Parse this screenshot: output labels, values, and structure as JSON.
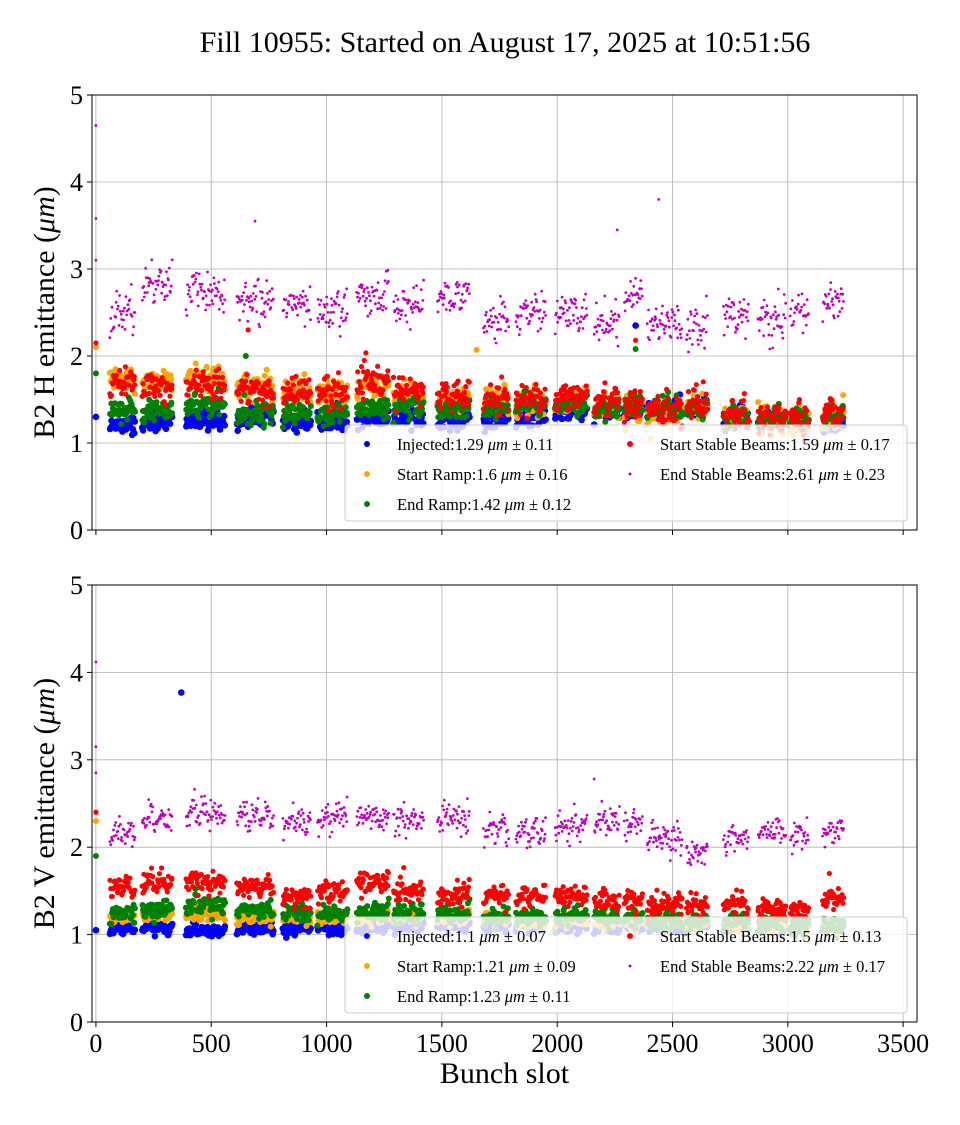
{
  "title": "Fill 10955: Started on August 17, 2025 at 10:51:56",
  "chart_data": [
    {
      "type": "scatter",
      "ylabel_prefix": "B2 H emittance (",
      "ylabel_unit": "μm",
      "ylabel_suffix": ")",
      "xlabel": "",
      "xlim": [
        -17,
        3560
      ],
      "ylim": [
        0,
        5
      ],
      "yticks": [
        "0",
        "1",
        "2",
        "3",
        "4",
        "5"
      ],
      "xticks": [
        0,
        500,
        1000,
        1500,
        2000,
        2500,
        3000,
        3500
      ],
      "grid": true,
      "legend_position": "lower-right",
      "bunch_trains": [
        [
          60,
          170
        ],
        [
          200,
          330
        ],
        [
          390,
          560
        ],
        [
          610,
          770
        ],
        [
          810,
          930
        ],
        [
          960,
          1090
        ],
        [
          1130,
          1270
        ],
        [
          1290,
          1420
        ],
        [
          1480,
          1620
        ],
        [
          1680,
          1790
        ],
        [
          1820,
          1950
        ],
        [
          1990,
          2130
        ],
        [
          2160,
          2270
        ],
        [
          2290,
          2370
        ],
        [
          2390,
          2540
        ],
        [
          2560,
          2650
        ],
        [
          2720,
          2830
        ],
        [
          2870,
          2990
        ],
        [
          3010,
          3090
        ],
        [
          3150,
          3240
        ]
      ],
      "series": [
        {
          "name": "Injected",
          "mean": "1.29",
          "unit": "μm",
          "std": "0.11",
          "color": "#0000ff",
          "train_means": [
            1.22,
            1.25,
            1.25,
            1.3,
            1.25,
            1.25,
            1.3,
            1.3,
            1.28,
            1.25,
            1.3,
            1.35,
            1.35,
            1.4,
            1.4,
            1.4,
            1.3,
            1.25,
            1.25,
            1.22
          ],
          "outliers": [
            [
              2340,
              2.35
            ],
            [
              0,
              1.3
            ]
          ]
        },
        {
          "name": "Start Ramp",
          "mean": "1.6",
          "unit": "μm",
          "std": "0.16",
          "color": "#ffa500",
          "train_means": [
            1.75,
            1.7,
            1.75,
            1.65,
            1.6,
            1.6,
            1.65,
            1.55,
            1.5,
            1.5,
            1.45,
            1.5,
            1.45,
            1.4,
            1.35,
            1.4,
            1.3,
            1.3,
            1.25,
            1.3
          ],
          "outliers": [
            [
              1650,
              2.07
            ],
            [
              0,
              2.1
            ],
            [
              3240,
              1.55
            ]
          ]
        },
        {
          "name": "End Ramp",
          "mean": "1.42",
          "unit": "μm",
          "std": "0.12",
          "color": "#008000",
          "train_means": [
            1.4,
            1.4,
            1.45,
            1.35,
            1.35,
            1.35,
            1.4,
            1.4,
            1.4,
            1.4,
            1.45,
            1.45,
            1.4,
            1.45,
            1.4,
            1.4,
            1.3,
            1.3,
            1.3,
            1.3
          ],
          "outliers": [
            [
              650,
              2.0
            ],
            [
              2340,
              2.08
            ],
            [
              0,
              1.8
            ]
          ]
        },
        {
          "name": "Start Stable Beams",
          "mean": "1.59",
          "unit": "μm",
          "std": "0.17",
          "color": "#ff0000",
          "train_means": [
            1.7,
            1.65,
            1.7,
            1.6,
            1.6,
            1.6,
            1.7,
            1.6,
            1.55,
            1.55,
            1.5,
            1.55,
            1.5,
            1.45,
            1.4,
            1.45,
            1.35,
            1.3,
            1.3,
            1.35
          ],
          "outliers": [
            [
              0,
              2.15
            ],
            [
              2340,
              2.18
            ],
            [
              660,
              2.3
            ]
          ]
        },
        {
          "name": "End Stable Beams",
          "mean": "2.61",
          "unit": "μm",
          "std": "0.23",
          "color": "#bf00bf",
          "train_means": [
            2.5,
            2.85,
            2.75,
            2.65,
            2.6,
            2.55,
            2.7,
            2.6,
            2.7,
            2.45,
            2.5,
            2.5,
            2.4,
            2.75,
            2.4,
            2.35,
            2.5,
            2.4,
            2.55,
            2.6
          ],
          "outliers": [
            [
              0,
              4.65
            ],
            [
              0,
              3.58
            ],
            [
              0,
              3.1
            ],
            [
              2440,
              3.8
            ],
            [
              690,
              3.55
            ],
            [
              2260,
              3.45
            ]
          ]
        }
      ]
    },
    {
      "type": "scatter",
      "ylabel_prefix": "B2 V emittance (",
      "ylabel_unit": "μm",
      "ylabel_suffix": ")",
      "xlabel": "Bunch slot",
      "xlim": [
        -17,
        3560
      ],
      "ylim": [
        0,
        5
      ],
      "yticks": [
        "0",
        "1",
        "2",
        "3",
        "4",
        "5"
      ],
      "xticks": [
        0,
        500,
        1000,
        1500,
        2000,
        2500,
        3000,
        3500
      ],
      "xticklabels": [
        "0",
        "500",
        "1000",
        "1500",
        "2000",
        "2500",
        "3000",
        "3500"
      ],
      "grid": true,
      "legend_position": "lower-right",
      "bunch_trains": [
        [
          60,
          170
        ],
        [
          200,
          330
        ],
        [
          390,
          560
        ],
        [
          610,
          770
        ],
        [
          810,
          930
        ],
        [
          960,
          1090
        ],
        [
          1130,
          1270
        ],
        [
          1290,
          1420
        ],
        [
          1480,
          1620
        ],
        [
          1680,
          1790
        ],
        [
          1820,
          1950
        ],
        [
          1990,
          2130
        ],
        [
          2160,
          2270
        ],
        [
          2290,
          2370
        ],
        [
          2390,
          2540
        ],
        [
          2560,
          2650
        ],
        [
          2720,
          2830
        ],
        [
          2870,
          2990
        ],
        [
          3010,
          3090
        ],
        [
          3150,
          3240
        ]
      ],
      "series": [
        {
          "name": "Injected",
          "mean": "1.1",
          "unit": "μm",
          "std": "0.07",
          "color": "#0000ff",
          "train_means": [
            1.08,
            1.08,
            1.05,
            1.07,
            1.07,
            1.07,
            1.1,
            1.1,
            1.1,
            1.1,
            1.1,
            1.1,
            1.1,
            1.1,
            1.1,
            1.1,
            1.1,
            1.1,
            1.1,
            1.1
          ],
          "outliers": [
            [
              370,
              3.77
            ],
            [
              0,
              1.05
            ]
          ]
        },
        {
          "name": "Start Ramp",
          "mean": "1.21",
          "unit": "μm",
          "std": "0.09",
          "color": "#ffa500",
          "train_means": [
            1.2,
            1.25,
            1.25,
            1.2,
            1.2,
            1.2,
            1.2,
            1.2,
            1.2,
            1.2,
            1.15,
            1.15,
            1.15,
            1.15,
            1.15,
            1.12,
            1.12,
            1.12,
            1.1,
            1.1
          ],
          "outliers": [
            [
              0,
              2.3
            ]
          ]
        },
        {
          "name": "End Ramp",
          "mean": "1.23",
          "unit": "μm",
          "std": "0.11",
          "color": "#008000",
          "train_means": [
            1.25,
            1.3,
            1.35,
            1.3,
            1.25,
            1.25,
            1.25,
            1.25,
            1.25,
            1.2,
            1.2,
            1.2,
            1.2,
            1.2,
            1.15,
            1.15,
            1.15,
            1.15,
            1.1,
            1.1
          ],
          "outliers": [
            [
              0,
              1.9
            ]
          ]
        },
        {
          "name": "Start Stable Beams",
          "mean": "1.5",
          "unit": "μm",
          "std": "0.13",
          "color": "#ff0000",
          "train_means": [
            1.55,
            1.6,
            1.6,
            1.55,
            1.45,
            1.5,
            1.6,
            1.5,
            1.45,
            1.45,
            1.45,
            1.45,
            1.4,
            1.4,
            1.35,
            1.35,
            1.35,
            1.3,
            1.3,
            1.4
          ],
          "outliers": [
            [
              0,
              2.4
            ],
            [
              3180,
              1.7
            ]
          ]
        },
        {
          "name": "End Stable Beams",
          "mean": "2.22",
          "unit": "μm",
          "std": "0.17",
          "color": "#bf00bf",
          "train_means": [
            2.15,
            2.35,
            2.4,
            2.35,
            2.3,
            2.35,
            2.35,
            2.3,
            2.35,
            2.2,
            2.2,
            2.25,
            2.3,
            2.3,
            2.1,
            1.95,
            2.1,
            2.2,
            2.15,
            2.2
          ],
          "outliers": [
            [
              0,
              4.12
            ],
            [
              0,
              3.15
            ],
            [
              0,
              2.85
            ],
            [
              2160,
              2.78
            ]
          ]
        }
      ]
    }
  ]
}
